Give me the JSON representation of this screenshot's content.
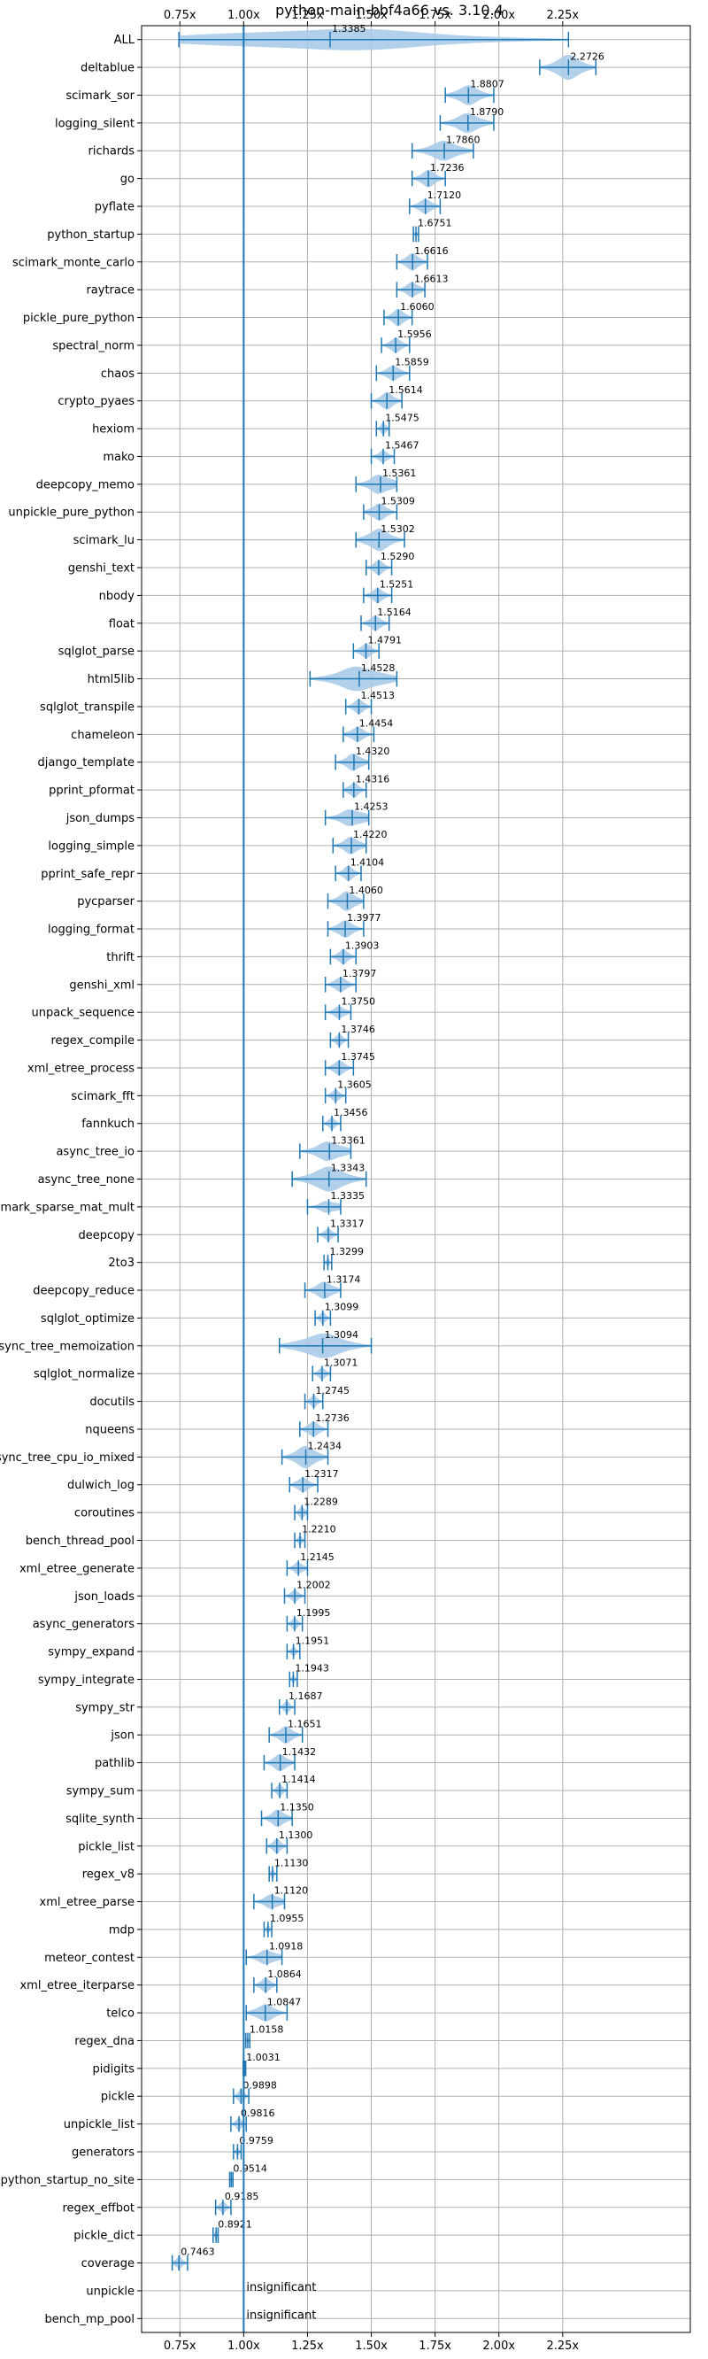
{
  "chart_data": {
    "type": "violin",
    "title": "python-main-bbf4a66 vs. 3.10.4",
    "xlim": [
      0.6,
      2.75
    ],
    "ticks": [
      "0.75x",
      "1.00x",
      "1.25x",
      "1.50x",
      "1.75x",
      "2.00x",
      "2.25x"
    ],
    "tick_values": [
      0.75,
      1.0,
      1.25,
      1.5,
      1.75,
      2.0,
      2.25
    ],
    "reference_line": 1.0,
    "grid": true,
    "colors": {
      "line": "#1f77b4",
      "violin": "#a6c8e6",
      "grid": "#b0b0b0",
      "axis": "#000000"
    },
    "benchmarks": [
      {
        "name": "ALL",
        "median": 1.3385,
        "label": "1.3385",
        "min": 0.7463,
        "max": 2.2726,
        "width": 0.9
      },
      {
        "name": "deltablue",
        "median": 2.2726,
        "label": "2.2726",
        "min": 2.16,
        "max": 2.38,
        "width": 1.0
      },
      {
        "name": "scimark_sor",
        "median": 1.8807,
        "label": "1.8807",
        "min": 1.79,
        "max": 1.98,
        "width": 0.8
      },
      {
        "name": "logging_silent",
        "median": 1.879,
        "label": "1.8790",
        "min": 1.77,
        "max": 1.98,
        "width": 0.8
      },
      {
        "name": "richards",
        "median": 1.786,
        "label": "1.7860",
        "min": 1.66,
        "max": 1.9,
        "width": 0.8
      },
      {
        "name": "go",
        "median": 1.7236,
        "label": "1.7236",
        "min": 1.66,
        "max": 1.79,
        "width": 0.7
      },
      {
        "name": "pyflate",
        "median": 1.712,
        "label": "1.7120",
        "min": 1.65,
        "max": 1.77,
        "width": 0.6
      },
      {
        "name": "python_startup",
        "median": 1.6751,
        "label": "1.6751",
        "min": 1.665,
        "max": 1.685,
        "width": 0.3
      },
      {
        "name": "scimark_monte_carlo",
        "median": 1.6616,
        "label": "1.6616",
        "min": 1.6,
        "max": 1.72,
        "width": 0.7
      },
      {
        "name": "raytrace",
        "median": 1.6613,
        "label": "1.6613",
        "min": 1.6,
        "max": 1.71,
        "width": 0.6
      },
      {
        "name": "pickle_pure_python",
        "median": 1.606,
        "label": "1.6060",
        "min": 1.55,
        "max": 1.66,
        "width": 0.7
      },
      {
        "name": "spectral_norm",
        "median": 1.5956,
        "label": "1.5956",
        "min": 1.54,
        "max": 1.65,
        "width": 0.6
      },
      {
        "name": "chaos",
        "median": 1.5859,
        "label": "1.5859",
        "min": 1.52,
        "max": 1.65,
        "width": 0.6
      },
      {
        "name": "crypto_pyaes",
        "median": 1.5614,
        "label": "1.5614",
        "min": 1.5,
        "max": 1.62,
        "width": 0.7
      },
      {
        "name": "hexiom",
        "median": 1.5475,
        "label": "1.5475",
        "min": 1.52,
        "max": 1.57,
        "width": 0.5
      },
      {
        "name": "mako",
        "median": 1.5467,
        "label": "1.5467",
        "min": 1.5,
        "max": 1.59,
        "width": 0.5
      },
      {
        "name": "deepcopy_memo",
        "median": 1.5361,
        "label": "1.5361",
        "min": 1.44,
        "max": 1.6,
        "width": 0.8
      },
      {
        "name": "unpickle_pure_python",
        "median": 1.5309,
        "label": "1.5309",
        "min": 1.47,
        "max": 1.6,
        "width": 0.7
      },
      {
        "name": "scimark_lu",
        "median": 1.5302,
        "label": "1.5302",
        "min": 1.44,
        "max": 1.63,
        "width": 0.9
      },
      {
        "name": "genshi_text",
        "median": 1.529,
        "label": "1.5290",
        "min": 1.48,
        "max": 1.58,
        "width": 0.6
      },
      {
        "name": "nbody",
        "median": 1.5251,
        "label": "1.5251",
        "min": 1.47,
        "max": 1.58,
        "width": 0.6
      },
      {
        "name": "float",
        "median": 1.5164,
        "label": "1.5164",
        "min": 1.46,
        "max": 1.57,
        "width": 0.6
      },
      {
        "name": "sqlglot_parse",
        "median": 1.4791,
        "label": "1.4791",
        "min": 1.43,
        "max": 1.53,
        "width": 0.6
      },
      {
        "name": "html5lib",
        "median": 1.4528,
        "label": "1.4528",
        "min": 1.26,
        "max": 1.6,
        "width": 1.0
      },
      {
        "name": "sqlglot_transpile",
        "median": 1.4513,
        "label": "1.4513",
        "min": 1.4,
        "max": 1.5,
        "width": 0.6
      },
      {
        "name": "chameleon",
        "median": 1.4454,
        "label": "1.4454",
        "min": 1.39,
        "max": 1.51,
        "width": 0.6
      },
      {
        "name": "django_template",
        "median": 1.432,
        "label": "1.4320",
        "min": 1.36,
        "max": 1.49,
        "width": 0.7
      },
      {
        "name": "pprint_pformat",
        "median": 1.4316,
        "label": "1.4316",
        "min": 1.39,
        "max": 1.48,
        "width": 0.6
      },
      {
        "name": "json_dumps",
        "median": 1.4253,
        "label": "1.4253",
        "min": 1.32,
        "max": 1.49,
        "width": 0.7
      },
      {
        "name": "logging_simple",
        "median": 1.422,
        "label": "1.4220",
        "min": 1.35,
        "max": 1.48,
        "width": 0.7
      },
      {
        "name": "pprint_safe_repr",
        "median": 1.4104,
        "label": "1.4104",
        "min": 1.36,
        "max": 1.46,
        "width": 0.6
      },
      {
        "name": "pycparser",
        "median": 1.406,
        "label": "1.4060",
        "min": 1.33,
        "max": 1.47,
        "width": 0.8
      },
      {
        "name": "logging_format",
        "median": 1.3977,
        "label": "1.3977",
        "min": 1.33,
        "max": 1.47,
        "width": 0.7
      },
      {
        "name": "thrift",
        "median": 1.3903,
        "label": "1.3903",
        "min": 1.34,
        "max": 1.44,
        "width": 0.6
      },
      {
        "name": "genshi_xml",
        "median": 1.3797,
        "label": "1.3797",
        "min": 1.32,
        "max": 1.44,
        "width": 0.6
      },
      {
        "name": "unpack_sequence",
        "median": 1.375,
        "label": "1.3750",
        "min": 1.32,
        "max": 1.42,
        "width": 0.5
      },
      {
        "name": "regex_compile",
        "median": 1.3746,
        "label": "1.3746",
        "min": 1.34,
        "max": 1.41,
        "width": 0.5
      },
      {
        "name": "xml_etree_process",
        "median": 1.3745,
        "label": "1.3745",
        "min": 1.32,
        "max": 1.43,
        "width": 0.6
      },
      {
        "name": "scimark_fft",
        "median": 1.3605,
        "label": "1.3605",
        "min": 1.32,
        "max": 1.4,
        "width": 0.5
      },
      {
        "name": "fannkuch",
        "median": 1.3456,
        "label": "1.3456",
        "min": 1.31,
        "max": 1.38,
        "width": 0.5
      },
      {
        "name": "async_tree_io",
        "median": 1.3361,
        "label": "1.3361",
        "min": 1.22,
        "max": 1.42,
        "width": 0.8
      },
      {
        "name": "async_tree_none",
        "median": 1.3343,
        "label": "1.3343",
        "min": 1.19,
        "max": 1.48,
        "width": 1.0
      },
      {
        "name": "scimark_sparse_mat_mult",
        "median": 1.3335,
        "label": "1.3335",
        "min": 1.25,
        "max": 1.38,
        "width": 0.5
      },
      {
        "name": "deepcopy",
        "median": 1.3317,
        "label": "1.3317",
        "min": 1.29,
        "max": 1.37,
        "width": 0.5
      },
      {
        "name": "2to3",
        "median": 1.3299,
        "label": "1.3299",
        "min": 1.315,
        "max": 1.345,
        "width": 0.4
      },
      {
        "name": "deepcopy_reduce",
        "median": 1.3174,
        "label": "1.3174",
        "min": 1.24,
        "max": 1.38,
        "width": 0.7
      },
      {
        "name": "sqlglot_optimize",
        "median": 1.3099,
        "label": "1.3099",
        "min": 1.28,
        "max": 1.34,
        "width": 0.5
      },
      {
        "name": "async_tree_memoization",
        "median": 1.3094,
        "label": "1.3094",
        "min": 1.14,
        "max": 1.5,
        "width": 1.0
      },
      {
        "name": "sqlglot_normalize",
        "median": 1.3071,
        "label": "1.3071",
        "min": 1.27,
        "max": 1.34,
        "width": 0.5
      },
      {
        "name": "docutils",
        "median": 1.2745,
        "label": "1.2745",
        "min": 1.24,
        "max": 1.31,
        "width": 0.5
      },
      {
        "name": "nqueens",
        "median": 1.2736,
        "label": "1.2736",
        "min": 1.22,
        "max": 1.33,
        "width": 0.6
      },
      {
        "name": "async_tree_cpu_io_mixed",
        "median": 1.2434,
        "label": "1.2434",
        "min": 1.15,
        "max": 1.33,
        "width": 0.9
      },
      {
        "name": "dulwich_log",
        "median": 1.2317,
        "label": "1.2317",
        "min": 1.18,
        "max": 1.29,
        "width": 0.6
      },
      {
        "name": "coroutines",
        "median": 1.2289,
        "label": "1.2289",
        "min": 1.2,
        "max": 1.25,
        "width": 0.5
      },
      {
        "name": "bench_thread_pool",
        "median": 1.221,
        "label": "1.2210",
        "min": 1.2,
        "max": 1.24,
        "width": 0.4
      },
      {
        "name": "xml_etree_generate",
        "median": 1.2145,
        "label": "1.2145",
        "min": 1.17,
        "max": 1.25,
        "width": 0.5
      },
      {
        "name": "json_loads",
        "median": 1.2002,
        "label": "1.2002",
        "min": 1.16,
        "max": 1.24,
        "width": 0.5
      },
      {
        "name": "async_generators",
        "median": 1.1995,
        "label": "1.1995",
        "min": 1.17,
        "max": 1.23,
        "width": 0.5
      },
      {
        "name": "sympy_expand",
        "median": 1.1951,
        "label": "1.1951",
        "min": 1.17,
        "max": 1.22,
        "width": 0.4
      },
      {
        "name": "sympy_integrate",
        "median": 1.1943,
        "label": "1.1943",
        "min": 1.18,
        "max": 1.21,
        "width": 0.4
      },
      {
        "name": "sympy_str",
        "median": 1.1687,
        "label": "1.1687",
        "min": 1.14,
        "max": 1.2,
        "width": 0.5
      },
      {
        "name": "json",
        "median": 1.1651,
        "label": "1.1651",
        "min": 1.1,
        "max": 1.23,
        "width": 0.7
      },
      {
        "name": "pathlib",
        "median": 1.1432,
        "label": "1.1432",
        "min": 1.08,
        "max": 1.2,
        "width": 0.7
      },
      {
        "name": "sympy_sum",
        "median": 1.1414,
        "label": "1.1414",
        "min": 1.11,
        "max": 1.17,
        "width": 0.5
      },
      {
        "name": "sqlite_synth",
        "median": 1.135,
        "label": "1.1350",
        "min": 1.07,
        "max": 1.19,
        "width": 0.7
      },
      {
        "name": "pickle_list",
        "median": 1.13,
        "label": "1.1300",
        "min": 1.09,
        "max": 1.17,
        "width": 0.6
      },
      {
        "name": "regex_v8",
        "median": 1.113,
        "label": "1.1130",
        "min": 1.1,
        "max": 1.13,
        "width": 0.4
      },
      {
        "name": "xml_etree_parse",
        "median": 1.112,
        "label": "1.1120",
        "min": 1.04,
        "max": 1.16,
        "width": 0.6
      },
      {
        "name": "mdp",
        "median": 1.0955,
        "label": "1.0955",
        "min": 1.08,
        "max": 1.11,
        "width": 0.4
      },
      {
        "name": "meteor_contest",
        "median": 1.0918,
        "label": "1.0918",
        "min": 1.01,
        "max": 1.15,
        "width": 0.6
      },
      {
        "name": "xml_etree_iterparse",
        "median": 1.0864,
        "label": "1.0864",
        "min": 1.04,
        "max": 1.13,
        "width": 0.6
      },
      {
        "name": "telco",
        "median": 1.0847,
        "label": "1.0847",
        "min": 1.01,
        "max": 1.17,
        "width": 0.7
      },
      {
        "name": "regex_dna",
        "median": 1.0158,
        "label": "1.0158",
        "min": 1.008,
        "max": 1.024,
        "width": 0.3
      },
      {
        "name": "pidigits",
        "median": 1.0031,
        "label": "1.0031",
        "min": 0.998,
        "max": 1.008,
        "width": 0.2
      },
      {
        "name": "pickle",
        "median": 0.9898,
        "label": "0.9898",
        "min": 0.96,
        "max": 1.02,
        "width": 0.6
      },
      {
        "name": "unpickle_list",
        "median": 0.9816,
        "label": "0.9816",
        "min": 0.95,
        "max": 1.01,
        "width": 0.5
      },
      {
        "name": "generators",
        "median": 0.9759,
        "label": "0.9759",
        "min": 0.96,
        "max": 0.99,
        "width": 0.4
      },
      {
        "name": "python_startup_no_site",
        "median": 0.9514,
        "label": "0.9514",
        "min": 0.945,
        "max": 0.958,
        "width": 0.3
      },
      {
        "name": "regex_effbot",
        "median": 0.9185,
        "label": "0.9185",
        "min": 0.89,
        "max": 0.95,
        "width": 0.5
      },
      {
        "name": "pickle_dict",
        "median": 0.8921,
        "label": "0.8921",
        "min": 0.88,
        "max": 0.9,
        "width": 0.4
      },
      {
        "name": "coverage",
        "median": 0.7463,
        "label": "0.7463",
        "min": 0.72,
        "max": 0.78,
        "width": 0.5
      },
      {
        "name": "unpickle",
        "insignificant": true,
        "label": "insignificant"
      },
      {
        "name": "bench_mp_pool",
        "insignificant": true,
        "label": "insignificant"
      }
    ]
  }
}
